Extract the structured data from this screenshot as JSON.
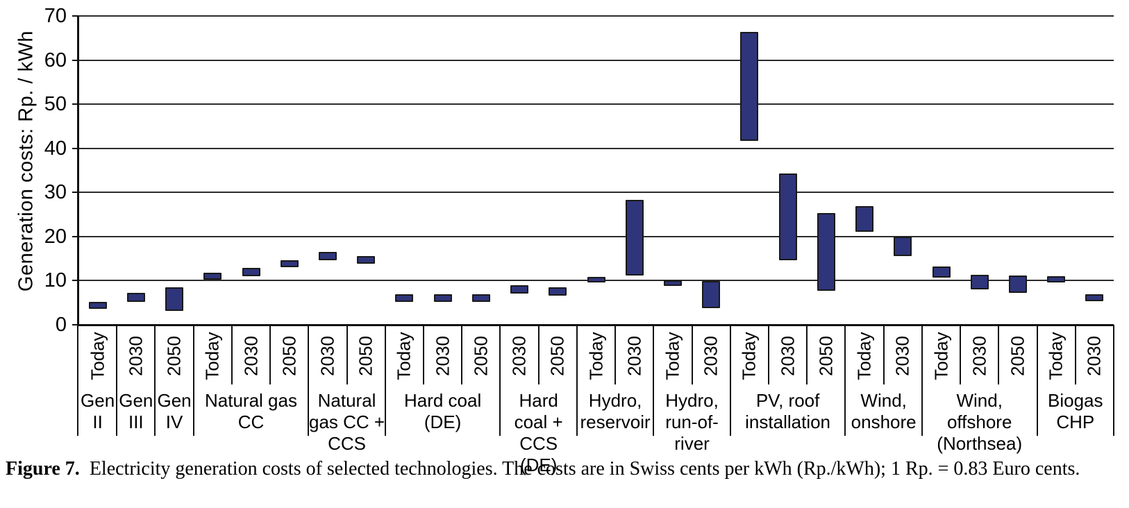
{
  "figure": {
    "caption_label": "Figure 7.",
    "caption_text": "Electricity generation costs of selected technologies. The costs are in Swiss cents per kWh (Rp./kWh); 1 Rp. = 0.83 Euro cents."
  },
  "chart_data": {
    "type": "bar",
    "subtype": "floating-range-bars",
    "title": "",
    "xlabel": "",
    "ylabel": "Generation costs: Rp. / kWh",
    "ylim": [
      0,
      70
    ],
    "yticks": [
      0,
      10,
      20,
      30,
      40,
      50,
      60,
      70
    ],
    "grid": "horizontal",
    "legend": "none",
    "bar_color": "#2f357a",
    "bar_border_color": "#191919",
    "unit": "Rp./kWh",
    "groups": [
      {
        "label": "Gen II",
        "columns": [
          {
            "period": "Today",
            "min": 4.0,
            "max": 4.8
          }
        ]
      },
      {
        "label": "Gen III",
        "columns": [
          {
            "period": "2030",
            "min": 5.5,
            "max": 6.9
          }
        ]
      },
      {
        "label": "Gen IV",
        "columns": [
          {
            "period": "2050",
            "min": 3.5,
            "max": 8.2
          }
        ]
      },
      {
        "label": "Natural gas CC",
        "columns": [
          {
            "period": "Today",
            "min": 10.6,
            "max": 11.5
          },
          {
            "period": "2030",
            "min": 11.4,
            "max": 12.5
          },
          {
            "period": "2050",
            "min": 13.4,
            "max": 14.3
          }
        ]
      },
      {
        "label": "Natural gas CC + CCS",
        "columns": [
          {
            "period": "2030",
            "min": 15.0,
            "max": 16.1
          },
          {
            "period": "2050",
            "min": 14.2,
            "max": 15.2
          }
        ]
      },
      {
        "label": "Hard coal (DE)",
        "columns": [
          {
            "period": "Today",
            "min": 5.6,
            "max": 6.5
          },
          {
            "period": "2030",
            "min": 5.6,
            "max": 6.5
          },
          {
            "period": "2050",
            "min": 5.6,
            "max": 6.5
          }
        ]
      },
      {
        "label": "Hard coal + CCS (DE)",
        "columns": [
          {
            "period": "2030",
            "min": 7.4,
            "max": 8.6
          },
          {
            "period": "2050",
            "min": 7.0,
            "max": 8.1
          }
        ]
      },
      {
        "label": "Hydro, reservoir",
        "columns": [
          {
            "period": "Today",
            "min": 9.9,
            "max": 10.5
          },
          {
            "period": "2030",
            "min": 11.6,
            "max": 28.0
          }
        ]
      },
      {
        "label": "Hydro, run-of-river",
        "columns": [
          {
            "period": "Today",
            "min": 9.1,
            "max": 9.7
          },
          {
            "period": "2030",
            "min": 4.2,
            "max": 9.5
          }
        ]
      },
      {
        "label": "PV, roof installation",
        "columns": [
          {
            "period": "Today",
            "min": 42.0,
            "max": 66.0
          },
          {
            "period": "2030",
            "min": 15.0,
            "max": 34.0
          },
          {
            "period": "2050",
            "min": 8.0,
            "max": 25.0
          }
        ]
      },
      {
        "label": "Wind, onshore",
        "columns": [
          {
            "period": "Today",
            "min": 21.5,
            "max": 26.5
          },
          {
            "period": "2030",
            "min": 16.0,
            "max": 19.6
          }
        ]
      },
      {
        "label": "Wind, offshore (Northsea)",
        "columns": [
          {
            "period": "Today",
            "min": 11.0,
            "max": 12.8
          },
          {
            "period": "2030",
            "min": 8.3,
            "max": 10.9
          },
          {
            "period": "2050",
            "min": 7.6,
            "max": 10.8
          }
        ]
      },
      {
        "label": "Biogas CHP",
        "columns": [
          {
            "period": "Today",
            "min": 10.0,
            "max": 10.7
          },
          {
            "period": "2030",
            "min": 5.7,
            "max": 6.5
          }
        ]
      }
    ]
  }
}
